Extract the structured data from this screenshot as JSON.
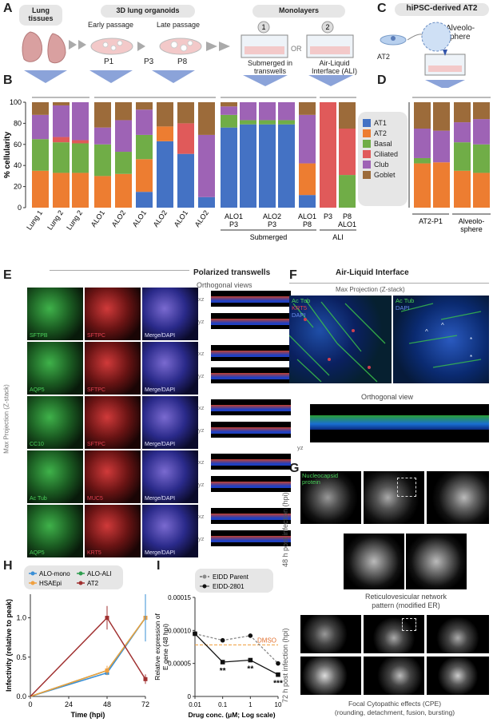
{
  "panel_labels": {
    "a": "A",
    "b": "B",
    "c": "C",
    "d": "D",
    "e": "E",
    "f": "F",
    "g": "G",
    "h": "H",
    "i": "I"
  },
  "panel_a": {
    "lung_tissues": "Lung\ntissues",
    "organoids": "3D lung organoids",
    "early_passage": "Early passage",
    "late_passage": "Late passage",
    "p1": "P1",
    "p3": "P3",
    "p8": "P8",
    "monolayers": "Monolayers",
    "step1": "1",
    "step2": "2",
    "or": "OR",
    "submerged": "Submerged in\ntranswells",
    "ali": "Air-Liquid\nInterface (ALI)"
  },
  "panel_c": {
    "title": "hiPSC-derived AT2",
    "at2": "AT2",
    "alveolosphere": "Alveolo-\nsphere"
  },
  "legend": {
    "items": [
      {
        "label": "AT1",
        "color": "#4472c4"
      },
      {
        "label": "AT2",
        "color": "#ed7d31"
      },
      {
        "label": "Basal",
        "color": "#70ad47"
      },
      {
        "label": "Ciliated",
        "color": "#e05a5a"
      },
      {
        "label": "Club",
        "color": "#9e63b5"
      },
      {
        "label": "Goblet",
        "color": "#9c6b3a"
      }
    ]
  },
  "group_labels": {
    "submerged": "Submerged",
    "ali": "ALI",
    "at2_p1": "AT2-P1",
    "alveolosphere": "Alveolo-\nsphere"
  },
  "chart_data": [
    {
      "type": "bar",
      "stacked": true,
      "ylabel": "% cellularity",
      "ylim": [
        0,
        100
      ],
      "yticks": [
        0,
        20,
        40,
        60,
        80,
        100
      ],
      "categories": [
        "Lung 1",
        "Lung 2",
        "Lung 2",
        "ALO1",
        "ALO2",
        "ALO1",
        "ALO2",
        "ALO1",
        "ALO2",
        "ALO1\nP3",
        "",
        "ALO2\nP3",
        "",
        "ALO1\nP8",
        "P3",
        "P8\nALO1"
      ],
      "series": [
        {
          "name": "AT1",
          "values": [
            0,
            0,
            0,
            0,
            0,
            15,
            63,
            51,
            10,
            76,
            79,
            79,
            79,
            12,
            0,
            0
          ]
        },
        {
          "name": "AT2",
          "values": [
            35,
            33,
            33,
            30,
            32,
            31,
            14,
            0,
            0,
            0,
            0,
            0,
            0,
            30,
            0,
            0
          ]
        },
        {
          "name": "Basal",
          "values": [
            30,
            29,
            28,
            30,
            21,
            23,
            0,
            0,
            0,
            12,
            4,
            4,
            4,
            0,
            0,
            31
          ]
        },
        {
          "name": "Ciliated",
          "values": [
            0,
            5,
            3,
            0,
            0,
            0,
            0,
            29,
            0,
            0,
            0,
            0,
            0,
            0,
            100,
            44
          ]
        },
        {
          "name": "Club",
          "values": [
            23,
            30,
            36,
            16,
            30,
            24,
            0,
            0,
            59,
            8,
            17,
            17,
            17,
            46,
            0,
            0
          ]
        },
        {
          "name": "Goblet",
          "values": [
            12,
            3,
            0,
            24,
            17,
            7,
            23,
            20,
            31,
            4,
            0,
            0,
            0,
            12,
            0,
            25
          ]
        }
      ]
    },
    {
      "type": "bar",
      "stacked": true,
      "ylim": [
        0,
        100
      ],
      "categories": [
        "AT2-P1a",
        "AT2-P1b",
        "Alveolosphere a",
        "Alveolosphere b"
      ],
      "series": [
        {
          "name": "AT2",
          "values": [
            42,
            43,
            35,
            33
          ]
        },
        {
          "name": "Basal",
          "values": [
            5,
            0,
            27,
            27
          ]
        },
        {
          "name": "Club",
          "values": [
            28,
            30,
            19,
            24
          ]
        },
        {
          "name": "Goblet",
          "values": [
            25,
            27,
            19,
            16
          ]
        }
      ]
    },
    {
      "type": "line",
      "xlabel": "Time (hpi)",
      "ylabel": "Infectivity (relative to peak)",
      "x": [
        0,
        24,
        48,
        72
      ],
      "xlim": [
        0,
        72
      ],
      "ylim": [
        0,
        1.3
      ],
      "xticks": [
        0,
        24,
        48,
        72
      ],
      "yticks": [
        0.0,
        0.5,
        1.0
      ],
      "series": [
        {
          "name": "ALO-mono",
          "color": "#3a8fd6",
          "x": [
            0,
            48,
            72
          ],
          "y": [
            0,
            0.3,
            1.0
          ]
        },
        {
          "name": "ALO-ALI",
          "color": "#2e9e4f",
          "x": [
            0,
            48,
            72
          ],
          "y": [
            0,
            0.33,
            1.0
          ]
        },
        {
          "name": "HSAEpi",
          "color": "#f0a040",
          "x": [
            0,
            48,
            72
          ],
          "y": [
            0,
            0.33,
            1.0
          ]
        },
        {
          "name": "AT2",
          "color": "#a03030",
          "x": [
            0,
            48,
            72
          ],
          "y": [
            0,
            1.0,
            0.22
          ]
        }
      ]
    },
    {
      "type": "line",
      "xlabel": "Drug conc. (μM; Log scale)",
      "ylabel": "Relative expression of\nE gene (48 hpi)",
      "xscale": "log",
      "xticks": [
        0.01,
        0.1,
        1,
        10
      ],
      "ylim": [
        0,
        0.00015
      ],
      "yticks": [
        0,
        5e-05,
        0.0001,
        0.00015
      ],
      "ytick_labels": [
        "0",
        "0.00005",
        "0.00010",
        "0.00015"
      ],
      "dmso": 7.8e-05,
      "dmso_label": "DMSO",
      "series": [
        {
          "name": "EIDD Parent",
          "x": [
            0.01,
            0.1,
            1,
            10
          ],
          "y": [
            9.5e-05,
            8.5e-05,
            9.2e-05,
            5e-05
          ]
        },
        {
          "name": "EIDD-2801",
          "x": [
            0.01,
            0.1,
            1,
            10
          ],
          "y": [
            9.5e-05,
            5.2e-05,
            5.5e-05,
            3.3e-05
          ]
        }
      ],
      "significance": [
        {
          "x": 0.1,
          "label": "**"
        },
        {
          "x": 1,
          "label": "**"
        },
        {
          "x": 10,
          "label": "***"
        }
      ]
    }
  ],
  "panel_e": {
    "title": "Polarized transwells",
    "orthogonal": "Orthogonal views",
    "side_label": "Max Projection (Z-stack)",
    "rows": [
      {
        "green": "SFTPB",
        "red": "SFTPC",
        "merge": "Merge/DAPI"
      },
      {
        "green": "AQP5",
        "red": "SFTPC",
        "merge": "Merge/DAPI"
      },
      {
        "green": "CC10",
        "red": "SFTPC",
        "merge": "Merge/DAPI"
      },
      {
        "green": "Ac Tub",
        "red": "MUC5",
        "merge": "Merge/DAPI"
      },
      {
        "green": "AQP5",
        "red": "KRT5",
        "merge": "Merge/DAPI"
      }
    ],
    "xz": "xz",
    "yz": "yz"
  },
  "panel_f": {
    "title": "Air-Liquid Interface",
    "subtitle": "Max Projection (Z-stack)",
    "left_labels": [
      "Ac Tub",
      "KRT5",
      "DAPI"
    ],
    "right_labels": [
      "Ac Tub",
      "DAPI"
    ],
    "ortho": "Orthogonal view",
    "yz": "yz"
  },
  "panel_g": {
    "nucleocapsid": "Nucleocapsid\nprotein",
    "side_48": "48 h post infection (hpi)",
    "side_72": "72 h post infection (hpi)",
    "caption_48": "Reticulovesicular network\npattern (modified ER)",
    "caption_72": "Focal Cytopathic effects (CPE)\n(rounding, detachment, fusion, bursting)"
  }
}
